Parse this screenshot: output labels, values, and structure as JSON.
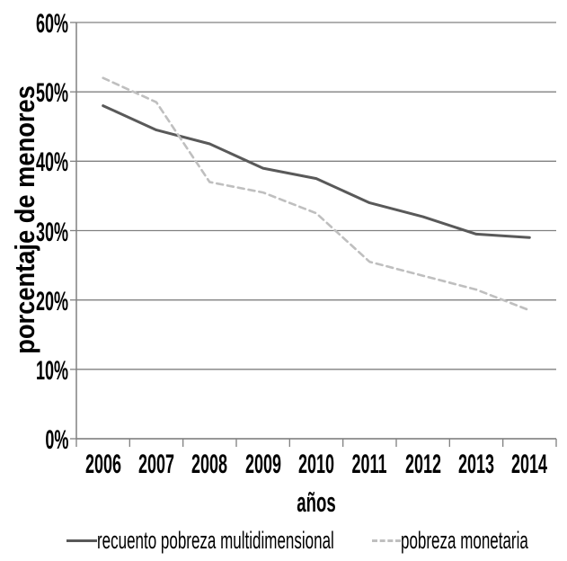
{
  "chart_data": {
    "type": "line",
    "title": "",
    "xlabel": "años",
    "ylabel": "porcentaje de menores",
    "categories": [
      "2006",
      "2007",
      "2008",
      "2009",
      "2010",
      "2011",
      "2012",
      "2013",
      "2014"
    ],
    "ytick_labels": [
      "0%",
      "10%",
      "20%",
      "30%",
      "40%",
      "50%",
      "60%"
    ],
    "ylim": [
      0,
      60
    ],
    "ytick_step": 10,
    "grid": "horizontal",
    "legend_position": "bottom",
    "series": [
      {
        "name": "recuento pobreza multidimensional",
        "style": "solid",
        "color": "#595959",
        "values": [
          48,
          44.5,
          42.5,
          39,
          37.5,
          34,
          32,
          29.5,
          29
        ]
      },
      {
        "name": "pobreza monetaria",
        "style": "dashed",
        "color": "#bfbfbf",
        "values": [
          52,
          48.5,
          37,
          35.5,
          32.5,
          25.5,
          23.5,
          21.5,
          18.5
        ]
      }
    ],
    "colors": {
      "axis": "#808080",
      "gridline": "#808080",
      "text": "#000000",
      "background": "#ffffff"
    }
  }
}
